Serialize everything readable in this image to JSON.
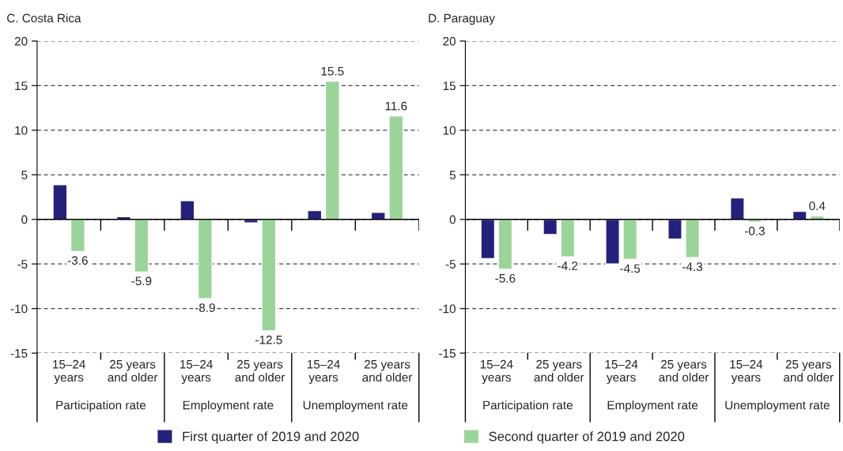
{
  "chart_data": [
    {
      "type": "bar",
      "title": "C. Costa Rica",
      "categories": [
        "15–24\nyears",
        "25 years\nand older",
        "15–24\nyears",
        "25 years\nand older",
        "15–24\nyears",
        "25 years\nand older"
      ],
      "annotations": [
        "Participation rate",
        "Employment rate",
        "Unemployment rate"
      ],
      "series": [
        {
          "name": "First quarter of 2019 and 2020",
          "color": "#25217a",
          "values": [
            3.9,
            0.3,
            2.1,
            -0.4,
            1.0,
            0.8
          ]
        },
        {
          "name": "Second quarter of 2019 and 2020",
          "color": "#9bd49b",
          "values": [
            -3.6,
            -5.9,
            -8.9,
            -12.5,
            15.5,
            11.6
          ],
          "value_labels": [
            "-3.6",
            "-5.9",
            "-8.9",
            "-12.5",
            "15.5",
            "11.6"
          ]
        }
      ],
      "ylim": [
        -15,
        20
      ],
      "yticks": [
        -15,
        -10,
        -5,
        0,
        5,
        10,
        15,
        20
      ],
      "grid": "y",
      "legend": "bottom"
    },
    {
      "type": "bar",
      "title": "D. Paraguay",
      "categories": [
        "15–24\nyears",
        "25 years\nand older",
        "15–24\nyears",
        "25 years\nand older",
        "15–24\nyears",
        "25 years\nand older"
      ],
      "annotations": [
        "Participation rate",
        "Employment rate",
        "Unemployment rate"
      ],
      "series": [
        {
          "color": "#25217a",
          "values": [
            -4.4,
            -1.7,
            -5.0,
            -2.2,
            2.4,
            0.9
          ]
        },
        {
          "color": "#9bd49b",
          "values": [
            -5.6,
            -4.2,
            -4.5,
            -4.3,
            -0.3,
            0.4
          ],
          "value_labels": [
            "-5.6",
            "-4.2",
            "-4.5",
            "-4.3",
            "-0.3",
            "0.4"
          ]
        }
      ],
      "ylim": [
        -15,
        20
      ],
      "yticks": [
        -15,
        -10,
        -5,
        0,
        5,
        10,
        15,
        20
      ],
      "grid": "y"
    }
  ]
}
